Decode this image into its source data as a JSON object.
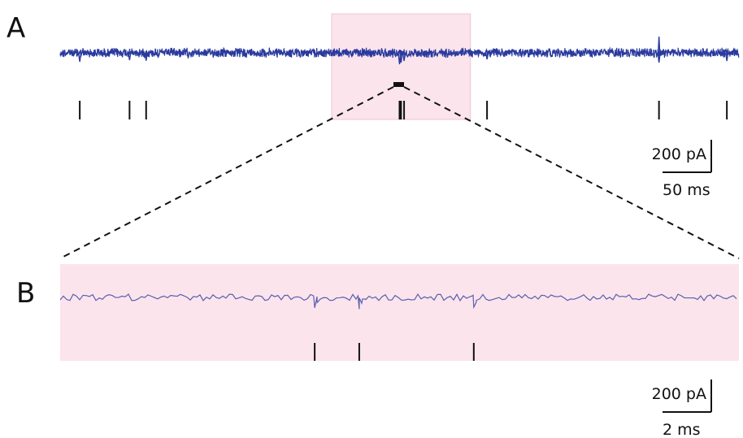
{
  "colors": {
    "trace": "#2a3a9e",
    "trace_b": "#5a5fb0",
    "highlight": "#fbe4ec",
    "highlight_edge": "#f0c4d4",
    "marks": "#111111"
  },
  "panels": {
    "a": {
      "label": "A"
    },
    "b": {
      "label": "B"
    }
  },
  "scale_bars": {
    "a": {
      "amplitude": "200 pA",
      "time": "50 ms"
    },
    "b": {
      "amplitude": "200 pA",
      "time": "2 ms"
    }
  },
  "chart_data": [
    {
      "type": "line",
      "panel": "A",
      "description_of_series": "continuous current trace with spontaneous inward events",
      "ylabel": "",
      "xlabel": "",
      "x_range_ms": [
        0,
        450
      ],
      "event_times_ms": [
        13,
        46,
        57,
        225,
        226,
        228,
        283,
        397,
        442
      ],
      "event_amplitudes_pA": [
        -55,
        -45,
        -48,
        -70,
        -60,
        -50,
        -40,
        -60,
        -50
      ],
      "upward_artifact_time_ms": 397,
      "highlighted_window_ms": [
        180,
        272
      ],
      "expanded_window_ms": [
        222,
        228
      ],
      "scale": {
        "amplitude_pA": 200,
        "time_ms": 50
      }
    },
    {
      "type": "line",
      "panel": "B",
      "x_range_ms": [
        0,
        16
      ],
      "event_times_ms": [
        6.0,
        7.05,
        9.75
      ],
      "event_amplitudes_pA": [
        -80,
        -90,
        -75
      ],
      "scale": {
        "amplitude_pA": 200,
        "time_ms": 2
      }
    }
  ]
}
